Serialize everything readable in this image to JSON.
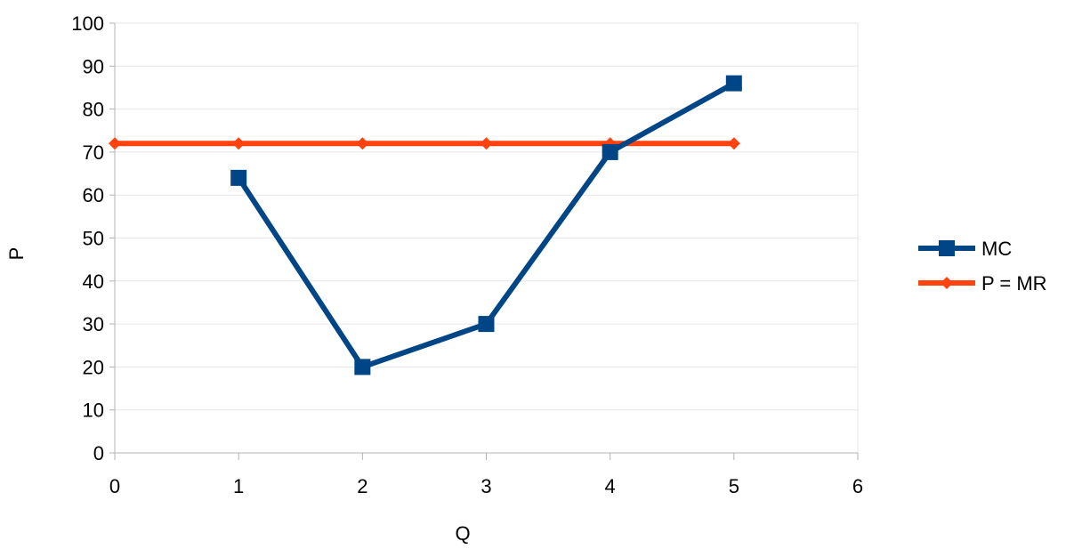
{
  "chart_data": {
    "type": "line",
    "title": "",
    "xlabel": "Q",
    "ylabel": "P",
    "xlim": [
      0,
      6
    ],
    "ylim": [
      0,
      100
    ],
    "xticks": [
      0,
      1,
      2,
      3,
      4,
      5,
      6
    ],
    "yticks": [
      0,
      10,
      20,
      30,
      40,
      50,
      60,
      70,
      80,
      90,
      100
    ],
    "grid": true,
    "legend_position": "right",
    "series": [
      {
        "name": "MC",
        "color": "#004586",
        "marker": "square",
        "points": [
          [
            1,
            64
          ],
          [
            2,
            20
          ],
          [
            3,
            30
          ],
          [
            4,
            70
          ],
          [
            5,
            86
          ]
        ]
      },
      {
        "name": "P = MR",
        "color": "#ff420e",
        "marker": "diamond",
        "points": [
          [
            0,
            72
          ],
          [
            1,
            72
          ],
          [
            2,
            72
          ],
          [
            3,
            72
          ],
          [
            4,
            72
          ],
          [
            5,
            72
          ]
        ]
      }
    ]
  }
}
